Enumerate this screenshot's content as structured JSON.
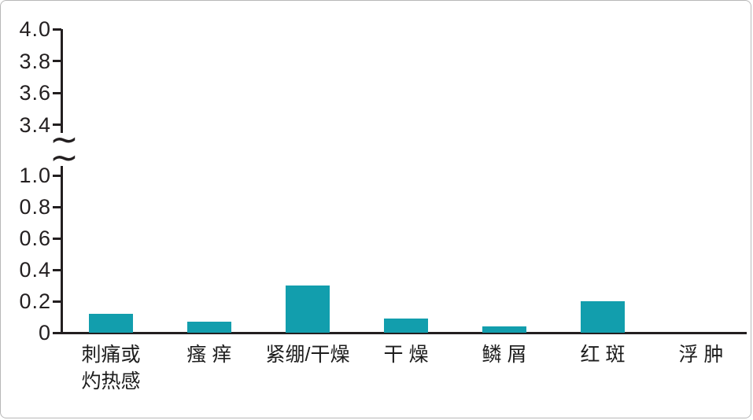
{
  "chart_data": {
    "type": "bar",
    "title": "",
    "xlabel": "",
    "ylabel": "",
    "categories": [
      "刺痛或\n灼热感",
      "瘙 痒",
      "紧绷/干燥",
      "干 燥",
      "鳞 屑",
      "红 斑",
      "浮 肿"
    ],
    "values": [
      0.12,
      0.07,
      0.3,
      0.09,
      0.04,
      0.2,
      0
    ],
    "bar_color": "#129ead",
    "axis_color": "#231f20",
    "grid": false,
    "legend": false,
    "y_axis": {
      "broken": true,
      "break_symbol": "~",
      "upper_tick_labels": [
        "4.0",
        "3.8",
        "3.6",
        "3.4"
      ],
      "upper_tick_values": [
        4.0,
        3.8,
        3.6,
        3.4
      ],
      "lower_tick_labels": [
        "1.0",
        "0.8",
        "0.6",
        "0.4",
        "0.2",
        "0"
      ],
      "lower_tick_values": [
        1.0,
        0.8,
        0.6,
        0.4,
        0.2,
        0
      ],
      "lower_range": [
        0,
        1.1
      ],
      "upper_range": [
        3.3,
        4.0
      ]
    }
  }
}
